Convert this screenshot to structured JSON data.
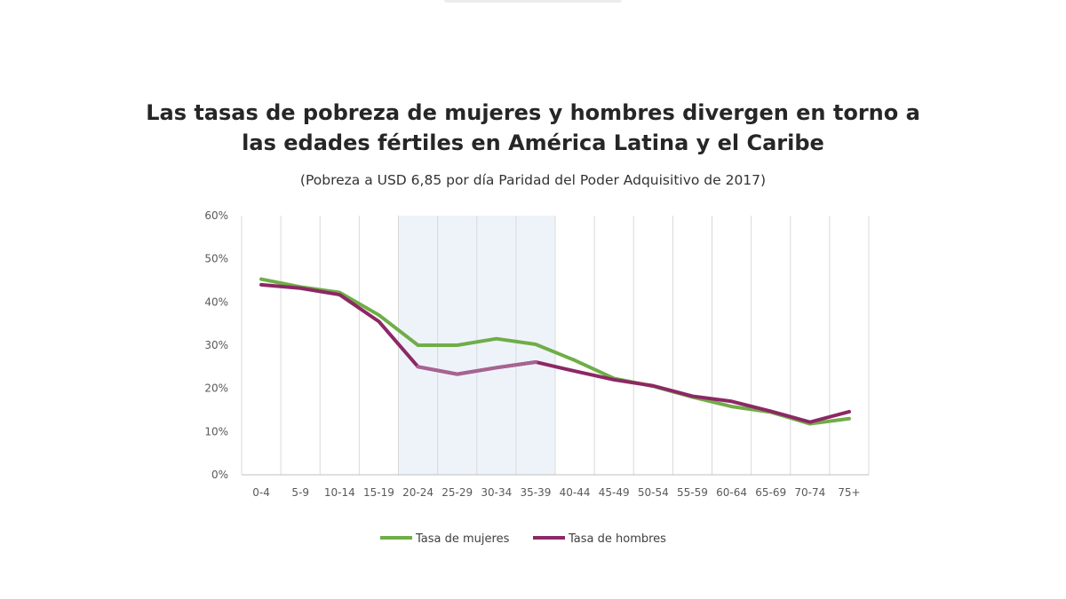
{
  "chart_data": {
    "type": "line",
    "title": "Las tasas de pobreza de mujeres y hombres divergen en torno a las edades fértiles en América Latina y el Caribe",
    "subtitle": "(Pobreza a USD 6,85 por día Paridad del Poder Adquisitivo de 2017)",
    "xlabel": "",
    "ylabel": "",
    "categories": [
      "0-4",
      "5-9",
      "10-14",
      "15-19",
      "20-24",
      "25-29",
      "30-34",
      "35-39",
      "40-44",
      "45-49",
      "50-54",
      "55-59",
      "60-64",
      "65-69",
      "70-74",
      "75+"
    ],
    "y_ticks": [
      "0%",
      "10%",
      "20%",
      "30%",
      "40%",
      "50%",
      "60%"
    ],
    "ylim": [
      0,
      60
    ],
    "grid": "vertical",
    "highlight_band": {
      "from": "20-24",
      "to": "35-39",
      "color": "#eef3fa"
    },
    "legend_position": "bottom",
    "series": [
      {
        "name": "Tasa de mujeres",
        "color": "#70ad47",
        "values": [
          45.3,
          43.5,
          42.2,
          37.0,
          30.0,
          30.0,
          31.5,
          30.2,
          26.5,
          22.3,
          20.5,
          18.0,
          15.8,
          14.5,
          11.8,
          13.0
        ]
      },
      {
        "name": "Tasa de hombres",
        "color": "#8c2864",
        "highlight_color": "#a66491",
        "values": [
          44.0,
          43.2,
          41.7,
          35.5,
          25.0,
          23.3,
          24.8,
          26.1,
          24.0,
          22.0,
          20.6,
          18.2,
          17.0,
          14.7,
          12.2,
          14.6
        ]
      }
    ]
  }
}
